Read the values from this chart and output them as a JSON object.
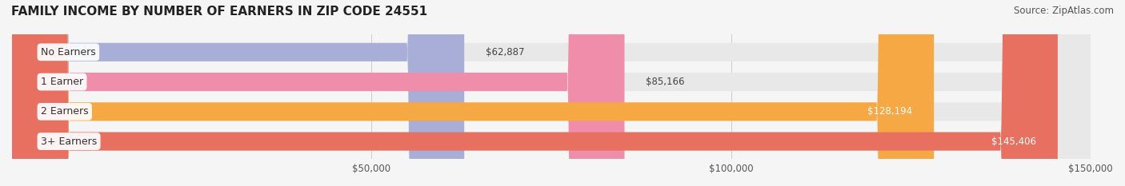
{
  "title": "FAMILY INCOME BY NUMBER OF EARNERS IN ZIP CODE 24551",
  "source": "Source: ZipAtlas.com",
  "categories": [
    "No Earners",
    "1 Earner",
    "2 Earners",
    "3+ Earners"
  ],
  "values": [
    62887,
    85166,
    128194,
    145406
  ],
  "bar_colors": [
    "#a8aed8",
    "#f08dab",
    "#f5a843",
    "#e87060"
  ],
  "bar_bg_color": "#e8e8e8",
  "label_colors": [
    "#333333",
    "#333333",
    "#ffffff",
    "#ffffff"
  ],
  "value_labels": [
    "$62,887",
    "$85,166",
    "$128,194",
    "$145,406"
  ],
  "xlim": [
    0,
    150000
  ],
  "xticks": [
    50000,
    100000,
    150000
  ],
  "xtick_labels": [
    "$50,000",
    "$100,000",
    "$150,000"
  ],
  "background_color": "#f5f5f5",
  "bar_bg_alpha": 1.0,
  "title_fontsize": 11,
  "source_fontsize": 8.5,
  "label_fontsize": 9,
  "value_fontsize": 8.5
}
